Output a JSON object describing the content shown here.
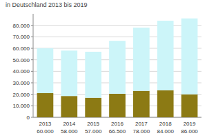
{
  "chart_data": {
    "type": "bar",
    "title": "in Deutschland 2013 bis 2019",
    "categories": [
      "2013",
      "2014",
      "2015",
      "2016",
      "2017",
      "2018",
      "2019"
    ],
    "series": [
      {
        "color": "#8c7a14",
        "values": [
          21000,
          18500,
          17000,
          20500,
          23000,
          23500,
          20000
        ]
      },
      {
        "color": "#ccf5f9",
        "values": [
          39000,
          39500,
          40000,
          46000,
          55000,
          60500,
          66000
        ]
      }
    ],
    "totals": [
      60000,
      58000,
      57000,
      66500,
      78000,
      84000,
      86000
    ],
    "total_labels": [
      "60.000",
      "58.000",
      "57.000",
      "66.500",
      "78.000",
      "84.000",
      "86.000"
    ],
    "stacked": true,
    "ylim": [
      0,
      90000
    ],
    "yticks": [
      0,
      {
        "value": 10000,
        "label": "10.000"
      },
      {
        "value": 20000,
        "label": "20.000"
      },
      {
        "value": 30000,
        "label": "30.000"
      },
      {
        "value": 40000,
        "label": "40.000"
      },
      {
        "value": 50000,
        "label": "50.000"
      },
      {
        "value": 60000,
        "label": "60.000"
      },
      {
        "value": 70000,
        "label": "70.000"
      },
      {
        "value": 80000,
        "label": "80.000"
      }
    ],
    "grid": true
  }
}
